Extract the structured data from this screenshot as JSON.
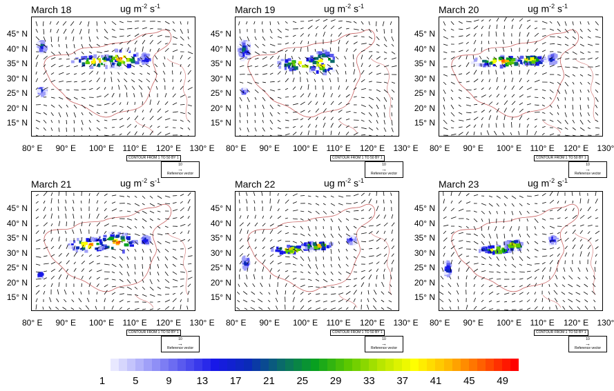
{
  "units_label": "ug m",
  "units_exp1": "-2",
  "units_s": " s",
  "units_exp2": "-1",
  "lat_labels": [
    "45° N",
    "40° N",
    "35° N",
    "30° N",
    "25° N",
    "20° N",
    "15° N"
  ],
  "lon_labels": [
    "80° E",
    "90° E",
    "100° E",
    "110° E",
    "120° E",
    "130° E"
  ],
  "contour_note": "CONTOUR FROM 1 TO 50 BY 1",
  "reference_value": "10",
  "reference_label": "Reference vector",
  "panels": [
    {
      "title": "March 18"
    },
    {
      "title": "March 19"
    },
    {
      "title": "March 20"
    },
    {
      "title": "March 21"
    },
    {
      "title": "March 22"
    },
    {
      "title": "March 23"
    }
  ],
  "colorbar": {
    "labels": [
      "1",
      "5",
      "9",
      "13",
      "17",
      "21",
      "25",
      "29",
      "33",
      "37",
      "41",
      "45",
      "49"
    ],
    "colors": [
      "#e8e8ff",
      "#a0a0f8",
      "#5a5aee",
      "#1818e8",
      "#0a2ab8",
      "#0a6a6a",
      "#08a020",
      "#5cc800",
      "#b8e600",
      "#ffff00",
      "#ffb800",
      "#ff6000",
      "#ff0000"
    ]
  }
}
